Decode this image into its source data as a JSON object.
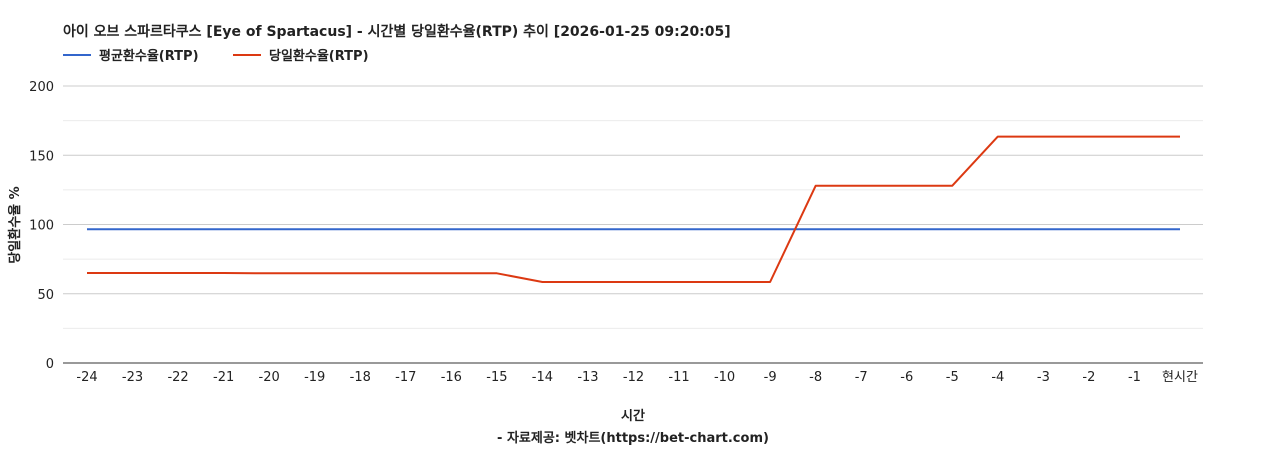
{
  "colors": {
    "average": "#3366cc",
    "daily": "#dc3912",
    "grid_major": "#cccccc",
    "grid_minor": "#ebebeb",
    "axis": "#333333"
  },
  "chart_data": {
    "type": "line",
    "title": "아이 오브 스파르타쿠스 [Eye of Spartacus] - 시간별 당일환수율(RTP) 추이 [2026-01-25 09:20:05]",
    "xlabel": "시간",
    "ylabel": "당일환수율 %",
    "footer": "- 자료제공: 벳차트(https://bet-chart.com)",
    "ylim": [
      0,
      200
    ],
    "yticks": [
      "0",
      "50",
      "100",
      "150",
      "200"
    ],
    "categories": [
      "-24",
      "-23",
      "-22",
      "-21",
      "-20",
      "-19",
      "-18",
      "-17",
      "-16",
      "-15",
      "-14",
      "-13",
      "-12",
      "-11",
      "-10",
      "-9",
      "-8",
      "-7",
      "-6",
      "-5",
      "-4",
      "-3",
      "-2",
      "-1",
      "현시간"
    ],
    "legend_position": "top-left",
    "grid": true,
    "series": [
      {
        "name": "평균환수율(RTP)",
        "color": "#3366cc",
        "values": [
          96.5,
          96.5,
          96.5,
          96.5,
          96.5,
          96.5,
          96.5,
          96.5,
          96.5,
          96.5,
          96.5,
          96.5,
          96.5,
          96.5,
          96.5,
          96.5,
          96.5,
          96.5,
          96.5,
          96.5,
          96.5,
          96.5,
          96.5,
          96.5,
          96.5
        ]
      },
      {
        "name": "당일환수율(RTP)",
        "color": "#dc3912",
        "values": [
          65,
          65,
          65,
          65,
          64.8,
          64.8,
          64.8,
          64.8,
          64.8,
          64.8,
          58.5,
          58.5,
          58.5,
          58.5,
          58.5,
          58.5,
          128,
          128,
          128,
          128,
          163.5,
          163.5,
          163.5,
          163.5,
          163.5
        ]
      }
    ]
  }
}
